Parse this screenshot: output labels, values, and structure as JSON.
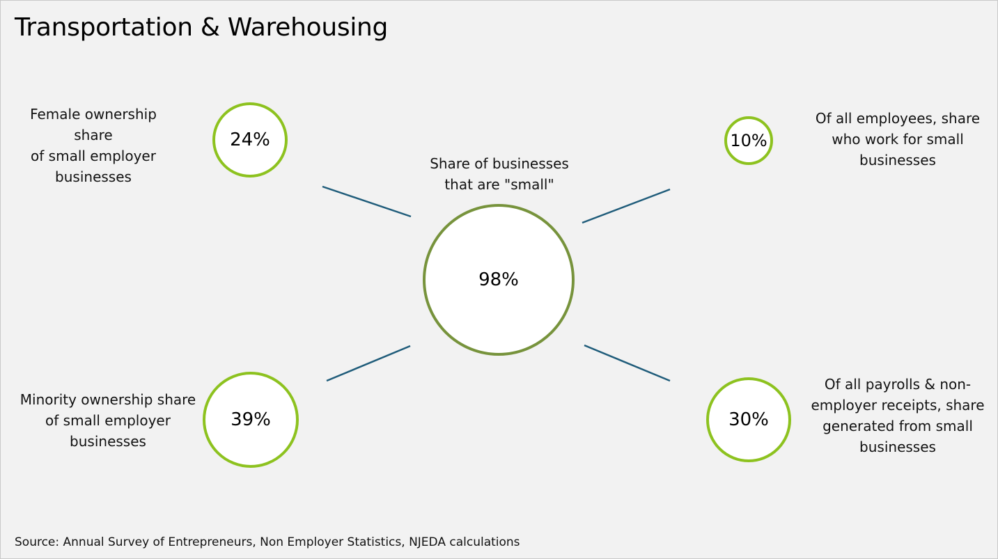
{
  "title": "Transportation & Warehousing",
  "center": {
    "label": "Share of businesses\nthat are \"small\"",
    "value": "98%"
  },
  "top_left": {
    "label": "Female ownership\nshare\nof small employer\nbusinesses",
    "value": "24%"
  },
  "top_right": {
    "label": "Of all employees, share\nwho work for small\nbusinesses",
    "value": "10%"
  },
  "bottom_left": {
    "label": "Minority ownership share\nof small employer\nbusinesses",
    "value": "39%"
  },
  "bottom_right": {
    "label": "Of all payrolls & non-\nemployer receipts, share\ngenerated from small\nbusinesses",
    "value": "30%"
  },
  "source": "Source: Annual Survey of Entrepreneurs, Non Employer Statistics, NJEDA calculations",
  "colors": {
    "background": "#f2f2f2",
    "ring_small": "#8dc21f",
    "ring_center": "#77933c",
    "connector": "#1f5c7a"
  }
}
